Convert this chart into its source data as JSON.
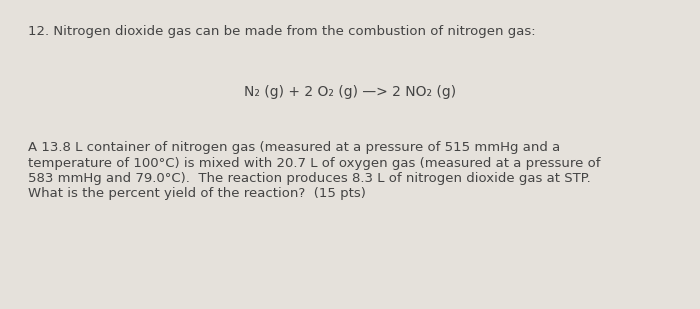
{
  "background_color": "#e5e1db",
  "question_number": "12. Nitrogen dioxide gas can be made from the combustion of nitrogen gas:",
  "equation": "N₂ (g) + 2 O₂ (g) —> 2 NO₂ (g)",
  "body_text_line1": "A 13.8 L container of nitrogen gas (measured at a pressure of 515 mmHg and a",
  "body_text_line2": "temperature of 100°C) is mixed with 20.7 L of oxygen gas (measured at a pressure of",
  "body_text_line3": "583 mmHg and 79.0°C).  The reaction produces 8.3 L of nitrogen dioxide gas at STP.",
  "body_text_line4": "What is the percent yield of the reaction?  (15 pts)",
  "text_color": "#444444",
  "font_size_question": 9.5,
  "font_size_equation": 10.0,
  "font_size_body": 9.5
}
